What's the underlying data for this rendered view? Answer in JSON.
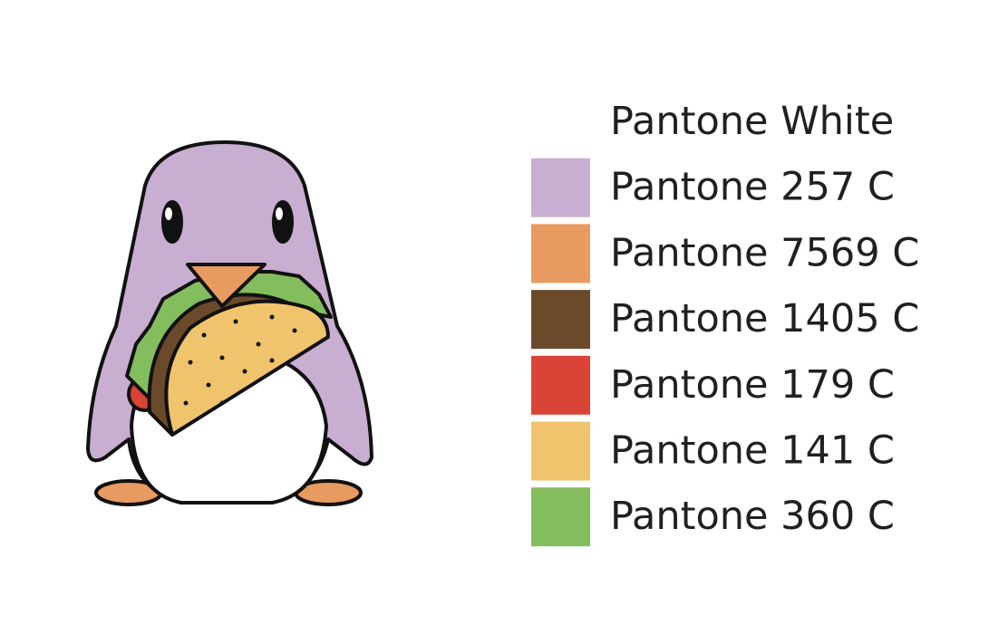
{
  "swatches": [
    {
      "label": "Pantone White",
      "color": "#ffffff"
    },
    {
      "label": "Pantone 257 C",
      "color": "#c8aed0"
    },
    {
      "label": "Pantone 7569 C",
      "color": "#e89b60"
    },
    {
      "label": "Pantone 1405 C",
      "color": "#6b4a2b"
    },
    {
      "label": "Pantone 179 C",
      "color": "#d94436"
    },
    {
      "label": "Pantone 141 C",
      "color": "#f0c46c"
    },
    {
      "label": "Pantone 360 C",
      "color": "#84bd5e"
    }
  ]
}
